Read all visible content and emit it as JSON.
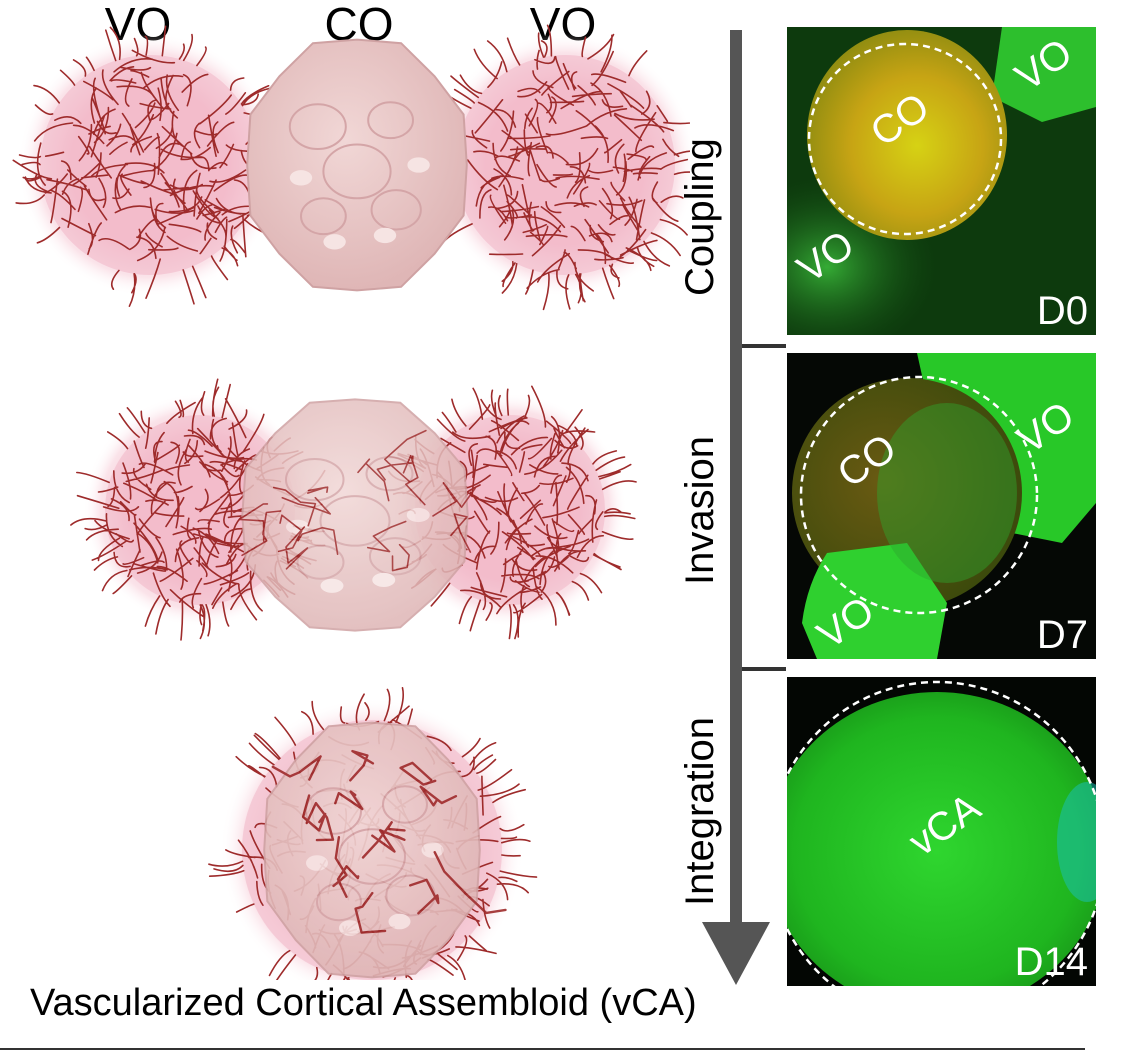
{
  "headers": {
    "left": "VO",
    "center": "CO",
    "right": "VO"
  },
  "stages": [
    {
      "label": "Coupling",
      "day": "D0"
    },
    {
      "label": "Invasion",
      "day": "D7"
    },
    {
      "label": "Integration",
      "day": "D14"
    }
  ],
  "panels": {
    "d0": {
      "co": "CO",
      "vo_top": "VO",
      "vo_bottom": "VO"
    },
    "d7": {
      "co": "CO",
      "vo_top": "VO",
      "vo_bottom": "VO"
    },
    "d14": {
      "vca": "vCA"
    }
  },
  "caption": "Vascularized Cortical Assembloid (vCA)",
  "colors": {
    "vessel": "#9e2b2b",
    "organoid_fill": "#e9c6c6",
    "organoid_shadow": "#d9a9ab",
    "glow": "#f4b8c8",
    "gfp_green": "#22d622",
    "co_orange": "#b9b418",
    "arrow": "#555555"
  }
}
